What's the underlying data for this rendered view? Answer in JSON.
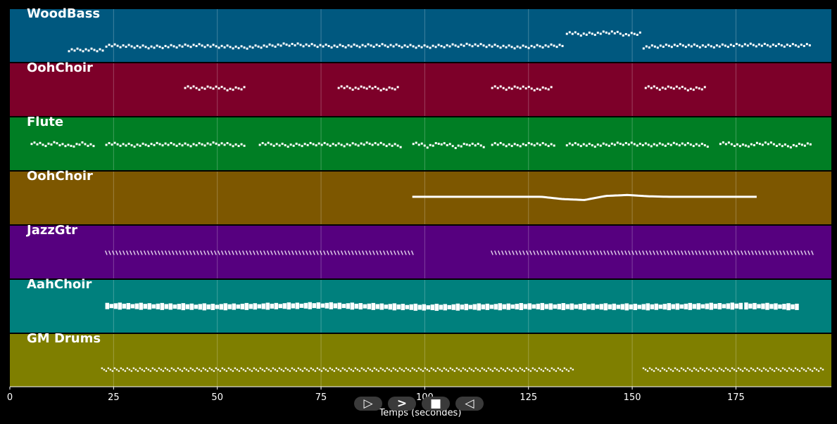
{
  "chart_data": {
    "type": "piano-roll",
    "xlabel": "Temps (secondes)",
    "xlim": [
      0,
      198
    ],
    "xticks": [
      0,
      25,
      50,
      75,
      100,
      125,
      150,
      175
    ],
    "grid": true,
    "tracks": [
      {
        "name": "WoodBass",
        "color": "#00587f",
        "note_style": "dotted",
        "pitch_range": [
          0,
          10
        ],
        "segments": [
          {
            "start": 14,
            "end": 22.5,
            "pitch": [
              2,
              2,
              2
            ]
          },
          {
            "start": 23,
            "end": 133,
            "pitch": [
              3,
              2.6,
              3,
              2.5,
              3.2,
              2.8,
              3,
              2.7,
              3.1,
              2.6,
              3
            ]
          },
          {
            "start": 134,
            "end": 152,
            "pitch": [
              5.8,
              5.4,
              5.6,
              5.9,
              5.3,
              5.7
            ]
          },
          {
            "start": 152.5,
            "end": 193,
            "pitch": [
              2.6,
              3,
              2.8,
              3.1,
              3,
              3
            ]
          }
        ]
      },
      {
        "name": "OohChoir",
        "color": "#7d0029",
        "note_style": "dotted",
        "pitch_range": [
          0,
          10
        ],
        "segments": [
          {
            "start": 42,
            "end": 56.5,
            "pitch": [
              5.8,
              5.4,
              5.7,
              5.2,
              5.6
            ]
          },
          {
            "start": 79,
            "end": 93.5,
            "pitch": [
              5.8,
              5.4,
              5.7,
              5.2,
              5.6
            ]
          },
          {
            "start": 116,
            "end": 130.5,
            "pitch": [
              5.8,
              5.4,
              5.7,
              5.2,
              5.6
            ]
          },
          {
            "start": 153,
            "end": 167.5,
            "pitch": [
              5.8,
              5.4,
              5.7,
              5.2,
              5.6
            ]
          }
        ]
      },
      {
        "name": "Flute",
        "color": "#007e24",
        "note_style": "dotted",
        "pitch_range": [
          0,
          10
        ],
        "segments": [
          {
            "start": 5,
            "end": 20,
            "pitch": [
              5.4,
              4.9,
              5.3,
              4.6,
              5.2,
              4.8
            ]
          },
          {
            "start": 23,
            "end": 56.5,
            "pitch": [
              5.2,
              4.8,
              5.1,
              4.9,
              5.2,
              4.7
            ]
          },
          {
            "start": 60,
            "end": 94,
            "pitch": [
              5.2,
              4.8,
              5.1,
              4.9,
              5.2,
              4.7
            ]
          },
          {
            "start": 97,
            "end": 114,
            "pitch": [
              5.4,
              4.6,
              5.3,
              4.5,
              5.1,
              4.7
            ]
          },
          {
            "start": 116,
            "end": 131,
            "pitch": [
              5.2,
              4.8,
              5.1,
              4.9
            ]
          },
          {
            "start": 134,
            "end": 168,
            "pitch": [
              5.1,
              4.8,
              5.2,
              4.9,
              5.1,
              4.8
            ]
          },
          {
            "start": 171,
            "end": 193,
            "pitch": [
              5.4,
              4.7,
              5.3,
              4.6,
              5.2
            ]
          }
        ]
      },
      {
        "name": "OohChoir",
        "color": "#7d5700",
        "note_style": "line",
        "pitch_range": [
          0,
          10
        ],
        "segments": [
          {
            "start": 97,
            "end": 180,
            "pitch": [
              5.4,
              5.4,
              5.4,
              5.4,
              5.4,
              5.4,
              5.4,
              4.9,
              4.7,
              5.6,
              5.8,
              5.5,
              5.4,
              5.4,
              5.4,
              5.4,
              5.4
            ]
          }
        ]
      },
      {
        "name": "JazzGtr",
        "color": "#56007f",
        "note_style": "zigzag",
        "pitch_range": [
          0,
          10
        ],
        "segments": [
          {
            "start": 23,
            "end": 97,
            "pitch": [
              5,
              5,
              5
            ]
          },
          {
            "start": 116,
            "end": 194,
            "pitch": [
              5,
              5,
              5
            ]
          }
        ]
      },
      {
        "name": "AahChoir",
        "color": "#00807d",
        "note_style": "block",
        "pitch_range": [
          0,
          10
        ],
        "segments": [
          {
            "start": 23,
            "end": 176.5,
            "pitch": [
              5.2,
              5,
              5.3,
              4.9,
              5.1,
              5,
              5.2
            ]
          },
          {
            "start": 177,
            "end": 190,
            "pitch": [
              5.2,
              5.1,
              5
            ]
          }
        ]
      },
      {
        "name": "GM Drums",
        "color": "#7f7f00",
        "note_style": "dense",
        "pitch_range": [
          0,
          10
        ],
        "segments": [
          {
            "start": 22,
            "end": 136,
            "pitch": [
              3.3,
              3.3,
              3.3
            ]
          },
          {
            "start": 152.5,
            "end": 196,
            "pitch": [
              3.3,
              3.3,
              3.3
            ]
          }
        ]
      }
    ]
  },
  "playback": {
    "rewind_icon": "▷",
    "play_icon": ">",
    "stop_icon": "■",
    "back_icon": "◁"
  }
}
